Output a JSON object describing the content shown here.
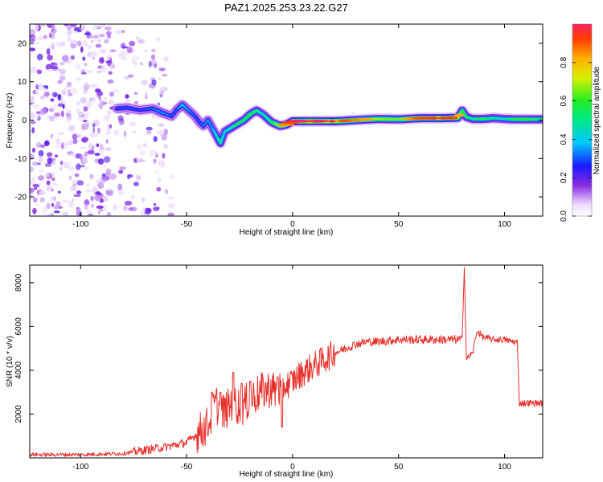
{
  "page": {
    "title": "PAZ1.2025.253.23.22.G27"
  },
  "chart_data": [
    {
      "type": "heatmap",
      "title": "PAZ1.2025.253.23.22.G27",
      "xlabel": "Height of straight line (km)",
      "ylabel": "Frequency (Hz)",
      "xlim": [
        -124,
        118
      ],
      "ylim": [
        -25,
        25
      ],
      "xticks": [
        -100,
        -50,
        0,
        50,
        100
      ],
      "xtick_labels": [
        "-100",
        "-50",
        "0",
        "50",
        "100"
      ],
      "yticks": [
        -20,
        -10,
        0,
        10,
        20
      ],
      "ytick_labels": [
        "-20",
        "-10",
        "0",
        "10",
        "20"
      ],
      "ridge": {
        "x": [
          -83,
          -78,
          -72,
          -66,
          -61,
          -57,
          -55,
          -52,
          -49,
          -46,
          -44,
          -42,
          -40,
          -38,
          -36,
          -34,
          -32,
          -29,
          -26,
          -23,
          -20,
          -17,
          -14,
          -12,
          -10,
          -8,
          -6,
          -3,
          0,
          10,
          20,
          30,
          40,
          50,
          60,
          70,
          78,
          80,
          82,
          85,
          90,
          95,
          100,
          105,
          110,
          118
        ],
        "y": [
          3,
          3.2,
          2.6,
          3,
          1.8,
          1,
          2.5,
          4,
          2.5,
          1,
          -0.5,
          -1.5,
          0,
          -2,
          -4,
          -6,
          -3,
          -2,
          -1,
          0,
          1.5,
          2.5,
          1.5,
          0.5,
          -0.5,
          -1,
          -1.5,
          -1.2,
          -0.3,
          -0.3,
          -0.3,
          0,
          0.3,
          0.2,
          0.5,
          0.5,
          0.6,
          2.5,
          0.8,
          0.3,
          0.3,
          0.5,
          0.3,
          0.2,
          0.2,
          0.2
        ],
        "amp": [
          0.3,
          0.3,
          0.28,
          0.32,
          0.35,
          0.3,
          0.3,
          0.38,
          0.35,
          0.3,
          0.3,
          0.33,
          0.35,
          0.35,
          0.45,
          0.5,
          0.42,
          0.5,
          0.55,
          0.55,
          0.6,
          0.55,
          0.45,
          0.5,
          0.55,
          0.65,
          0.7,
          0.75,
          0.85,
          1.0,
          0.85,
          0.78,
          0.68,
          0.65,
          0.8,
          0.9,
          0.78,
          0.6,
          0.55,
          0.5,
          0.58,
          0.5,
          0.45,
          0.58,
          0.6,
          0.52
        ]
      },
      "noise_region": [
        -124,
        -65
      ],
      "colorbar": {
        "label": "Normalized spectral amplitude",
        "range": [
          0,
          1
        ],
        "ticks": [
          0.0,
          0.2,
          0.4,
          0.6,
          0.8
        ],
        "tick_labels": [
          "0.0",
          "0.2",
          "0.4",
          "0.6",
          "0.8"
        ]
      }
    },
    {
      "type": "line",
      "xlabel": "Height of straight line (km)",
      "ylabel": "SNR (10 * v/v)",
      "xlim": [
        -124,
        118
      ],
      "ylim": [
        0,
        8800
      ],
      "xticks": [
        -100,
        -50,
        0,
        50,
        100
      ],
      "xtick_labels": [
        "-100",
        "-50",
        "0",
        "50",
        "100"
      ],
      "yticks": [
        2000,
        4000,
        6000,
        8000
      ],
      "ytick_labels": [
        "2000",
        "4000",
        "6000",
        "8000"
      ],
      "color": "#e8302a",
      "x": [
        -124,
        -100,
        -80,
        -70,
        -60,
        -50,
        -45,
        -40,
        -38,
        -36,
        -34,
        -30,
        -28,
        -26,
        -24,
        -20,
        -15,
        -10,
        -8,
        -5,
        0,
        5,
        10,
        15,
        20,
        25,
        30,
        35,
        40,
        50,
        60,
        70,
        78,
        80,
        81,
        82,
        85,
        87,
        90,
        95,
        100,
        104,
        106,
        107,
        110,
        118
      ],
      "y": [
        150,
        150,
        200,
        350,
        500,
        700,
        1100,
        1500,
        2000,
        2500,
        2000,
        2300,
        2700,
        2400,
        2300,
        2700,
        3000,
        3200,
        3000,
        3200,
        3500,
        3900,
        4200,
        4500,
        4800,
        5000,
        5200,
        5300,
        5300,
        5400,
        5400,
        5400,
        5400,
        5400,
        8800,
        4500,
        4800,
        5800,
        5500,
        5400,
        5400,
        5300,
        5300,
        2500,
        2500,
        2500
      ],
      "spikes": [
        {
          "x": -38,
          "y": 3000
        },
        {
          "x": -34,
          "y": 3000
        },
        {
          "x": -28,
          "y": 3900
        },
        {
          "x": -24,
          "y": 3400
        },
        {
          "x": -20,
          "y": 3500
        },
        {
          "x": -7,
          "y": 3700
        },
        {
          "x": -5,
          "y": 1400
        }
      ]
    }
  ]
}
